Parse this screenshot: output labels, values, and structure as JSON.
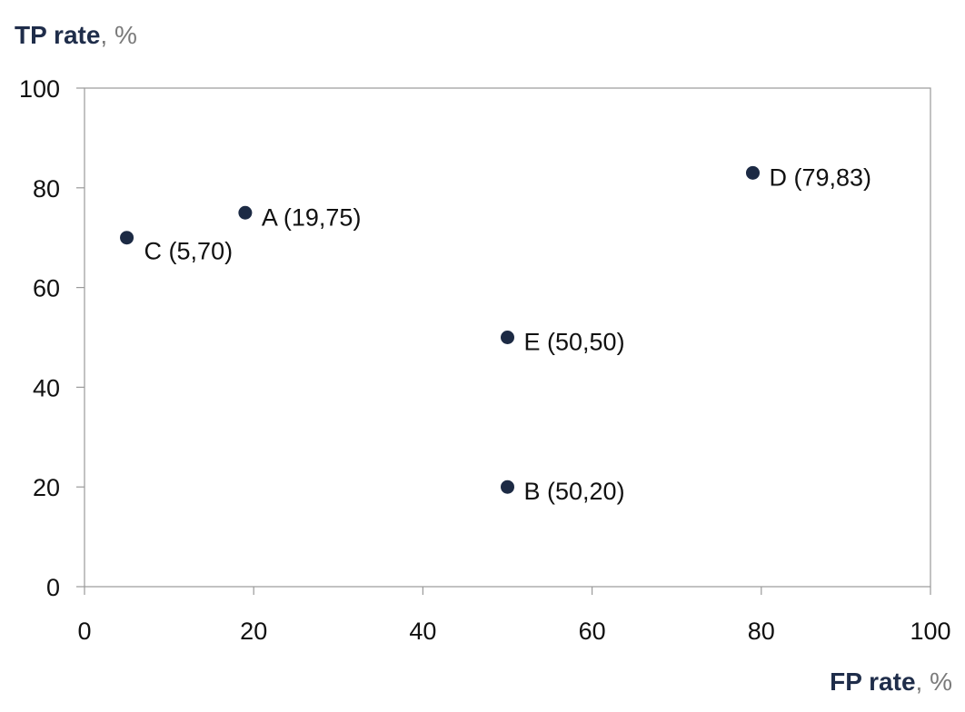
{
  "chart_data": {
    "type": "scatter",
    "ylabel": "TP rate",
    "ylabel_unit": ", %",
    "xlabel": "FP rate",
    "xlabel_unit": ", %",
    "xlim": [
      0,
      100
    ],
    "ylim": [
      0,
      100
    ],
    "x_ticks": [
      "0",
      "20",
      "40",
      "60",
      "80",
      "100"
    ],
    "y_ticks": [
      "0",
      "20",
      "40",
      "60",
      "80",
      "100"
    ],
    "grid": false,
    "points": [
      {
        "name": "A",
        "label": "A (19,75)",
        "x": 19,
        "y": 75
      },
      {
        "name": "B",
        "label": "B (50,20)",
        "x": 50,
        "y": 20
      },
      {
        "name": "C",
        "label": "C (5,70)",
        "x": 5,
        "y": 70
      },
      {
        "name": "D",
        "label": "D (79,83)",
        "x": 79,
        "y": 83
      },
      {
        "name": "E",
        "label": "E (50,50)",
        "x": 50,
        "y": 50
      }
    ],
    "marker_color": "#1c2a44",
    "axis_color": "#9a9a9a"
  }
}
